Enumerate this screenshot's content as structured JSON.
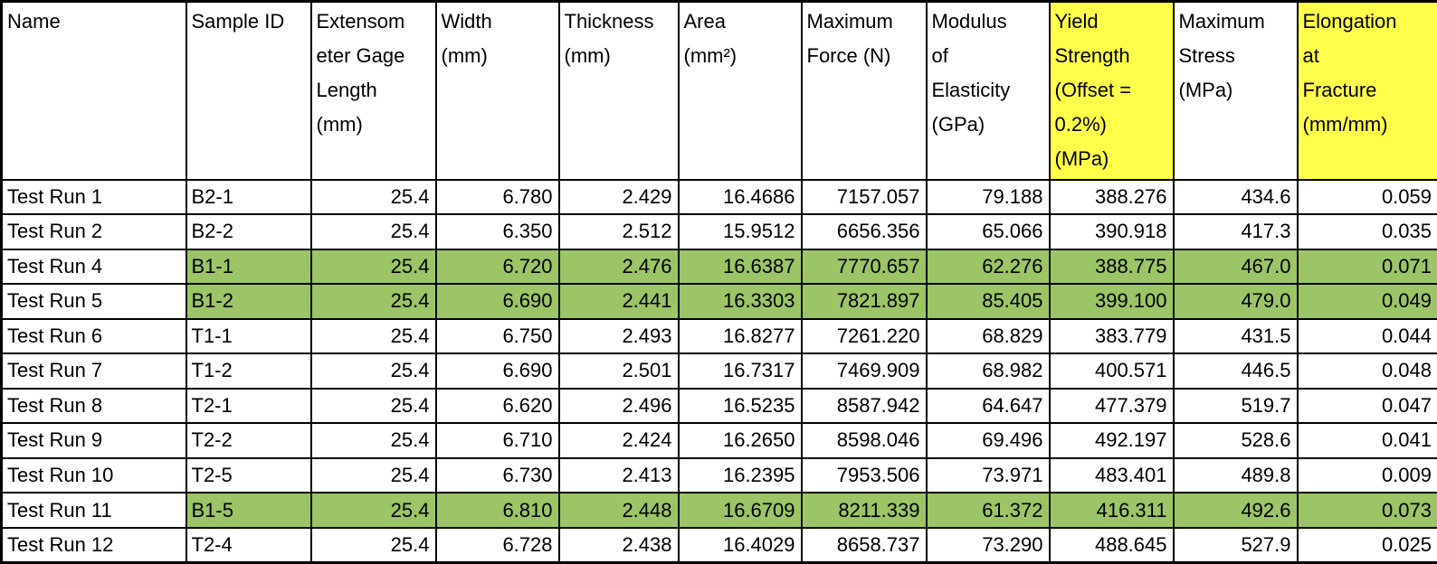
{
  "colors": {
    "row_highlight_green": "#9BC566",
    "header_highlight_yellow": "#FFFF4B",
    "border_black": "#000000"
  },
  "table": {
    "columns": [
      {
        "id": "name",
        "label": "Name",
        "align": "left",
        "highlight": false
      },
      {
        "id": "sample-id",
        "label": "Sample ID",
        "align": "left",
        "highlight": false
      },
      {
        "id": "extensometer-gage-length",
        "label": "Extensom\neter Gage\nLength\n(mm)",
        "align": "right",
        "highlight": false
      },
      {
        "id": "width",
        "label": "Width\n(mm)",
        "align": "right",
        "highlight": false
      },
      {
        "id": "thickness",
        "label": "Thickness\n(mm)",
        "align": "right",
        "highlight": false
      },
      {
        "id": "area",
        "label": "Area\n(mm²)",
        "align": "right",
        "highlight": false
      },
      {
        "id": "maximum-force",
        "label": "Maximum\nForce (N)",
        "align": "right",
        "highlight": false
      },
      {
        "id": "modulus-of-elasticity",
        "label": "Modulus\nof\nElasticity\n(GPa)",
        "align": "right",
        "highlight": false
      },
      {
        "id": "yield-strength",
        "label": "Yield\nStrength\n(Offset =\n0.2%)\n(MPa)",
        "align": "right",
        "highlight": true
      },
      {
        "id": "maximum-stress",
        "label": "Maximum\nStress\n(MPa)",
        "align": "right",
        "highlight": false
      },
      {
        "id": "elongation-at-fracture",
        "label": "Elongation\nat\nFracture\n(mm/mm)",
        "align": "right",
        "highlight": true
      }
    ],
    "rows": [
      {
        "highlighted": false,
        "cells": [
          "Test Run 1",
          "B2-1",
          "25.4",
          "6.780",
          "2.429",
          "16.4686",
          "7157.057",
          "79.188",
          "388.276",
          "434.6",
          "0.059"
        ]
      },
      {
        "highlighted": false,
        "cells": [
          "Test Run 2",
          "B2-2",
          "25.4",
          "6.350",
          "2.512",
          "15.9512",
          "6656.356",
          "65.066",
          "390.918",
          "417.3",
          "0.035"
        ]
      },
      {
        "highlighted": true,
        "cells": [
          "Test Run 4",
          "B1-1",
          "25.4",
          "6.720",
          "2.476",
          "16.6387",
          "7770.657",
          "62.276",
          "388.775",
          "467.0",
          "0.071"
        ]
      },
      {
        "highlighted": true,
        "cells": [
          "Test Run 5",
          "B1-2",
          "25.4",
          "6.690",
          "2.441",
          "16.3303",
          "7821.897",
          "85.405",
          "399.100",
          "479.0",
          "0.049"
        ]
      },
      {
        "highlighted": false,
        "cells": [
          "Test Run 6",
          "T1-1",
          "25.4",
          "6.750",
          "2.493",
          "16.8277",
          "7261.220",
          "68.829",
          "383.779",
          "431.5",
          "0.044"
        ]
      },
      {
        "highlighted": false,
        "cells": [
          "Test Run 7",
          "T1-2",
          "25.4",
          "6.690",
          "2.501",
          "16.7317",
          "7469.909",
          "68.982",
          "400.571",
          "446.5",
          "0.048"
        ]
      },
      {
        "highlighted": false,
        "cells": [
          "Test Run 8",
          "T2-1",
          "25.4",
          "6.620",
          "2.496",
          "16.5235",
          "8587.942",
          "64.647",
          "477.379",
          "519.7",
          "0.047"
        ]
      },
      {
        "highlighted": false,
        "cells": [
          "Test Run 9",
          "T2-2",
          "25.4",
          "6.710",
          "2.424",
          "16.2650",
          "8598.046",
          "69.496",
          "492.197",
          "528.6",
          "0.041"
        ]
      },
      {
        "highlighted": false,
        "cells": [
          "Test Run 10",
          "T2-5",
          "25.4",
          "6.730",
          "2.413",
          "16.2395",
          "7953.506",
          "73.971",
          "483.401",
          "489.8",
          "0.009"
        ]
      },
      {
        "highlighted": true,
        "cells": [
          "Test Run 11",
          "B1-5",
          "25.4",
          "6.810",
          "2.448",
          "16.6709",
          "8211.339",
          "61.372",
          "416.311",
          "492.6",
          "0.073"
        ]
      },
      {
        "highlighted": false,
        "cells": [
          "Test Run 12",
          "T2-4",
          "25.4",
          "6.728",
          "2.438",
          "16.4029",
          "8658.737",
          "73.290",
          "488.645",
          "527.9",
          "0.025"
        ]
      }
    ]
  }
}
